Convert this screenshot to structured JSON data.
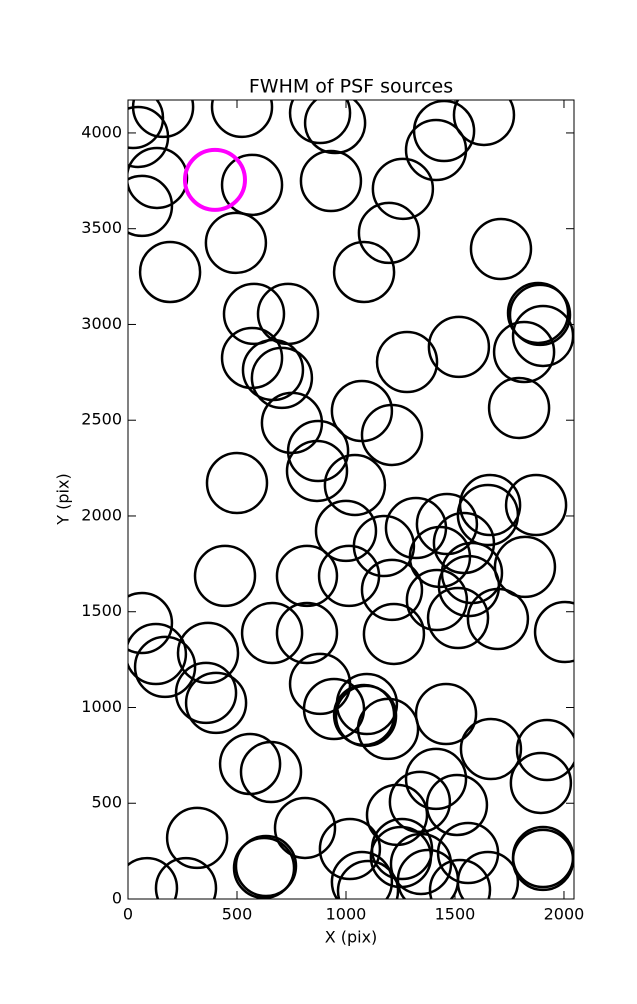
{
  "chart_data": {
    "type": "scatter",
    "title": "FWHM of PSF sources",
    "x_label": "X (pix)",
    "y_label": "Y (pix)",
    "xlim": [
      0,
      2046
    ],
    "ylim": [
      0,
      4172
    ],
    "xticks": [
      0,
      500,
      1000,
      1500,
      2000
    ],
    "yticks": [
      0,
      500,
      1000,
      1500,
      2000,
      2500,
      3000,
      3500,
      4000
    ],
    "grid": false,
    "series": [
      {
        "color": "#000000",
        "x": [
          23,
          46,
          161,
          523,
          881,
          950,
          1450,
          1413,
          1633,
          133,
          64,
          569,
          931,
          1261,
          495,
          1197,
          1711,
          193,
          1083,
          578,
          734,
          1881,
          1890,
          1904,
          1518,
          1817,
          569,
          665,
          706,
          1280,
          1794,
          1073,
          752,
          1211,
          872,
          867,
          500,
          1041,
          1661,
          1872,
          1651,
          1000,
          1321,
          1463,
          1174,
          1541,
          1431,
          1578,
          1821,
          1564,
          445,
          821,
          1014,
          1211,
          64,
          1417,
          1514,
          1697,
          2005,
          661,
          821,
          1220,
          128,
          170,
          367,
          358,
          404,
          881,
          945,
          1096,
          1083,
          1092,
          1193,
          1459,
          1665,
          1922,
          1894,
          560,
          656,
          1413,
          1509,
          1339,
          1234,
          812,
          317,
          1018,
          1257,
          1252,
          1560,
          1904,
          1904,
          624,
          633,
          1344,
          1073,
          1101,
          1376,
          1523,
          1651,
          87,
          266
        ],
        "y": [
          4078,
          3979,
          4136,
          4136,
          4104,
          4052,
          4010,
          3911,
          4094,
          3765,
          3619,
          3729,
          3749,
          3708,
          3426,
          3478,
          3394,
          3274,
          3274,
          3055,
          3055,
          3060,
          3050,
          2940,
          2883,
          2856,
          2825,
          2762,
          2721,
          2804,
          2564,
          2548,
          2486,
          2423,
          2339,
          2235,
          2172,
          2162,
          2057,
          2057,
          2005,
          1922,
          1937,
          1958,
          1843,
          1859,
          1786,
          1702,
          1734,
          1634,
          1687,
          1687,
          1687,
          1614,
          1441,
          1561,
          1467,
          1462,
          1394,
          1389,
          1389,
          1384,
          1279,
          1212,
          1285,
          1076,
          1024,
          1123,
          992,
          1018,
          961,
          956,
          888,
          966,
          783,
          778,
          606,
          705,
          663,
          627,
          491,
          507,
          439,
          371,
          319,
          261,
          261,
          219,
          240,
          219,
          204,
          162,
          172,
          183,
          89,
          42,
          99,
          47,
          89,
          57,
          57
        ]
      },
      {
        "color": "#ff00ff",
        "x": [
          399
        ],
        "y": [
          3755
        ]
      }
    ]
  }
}
